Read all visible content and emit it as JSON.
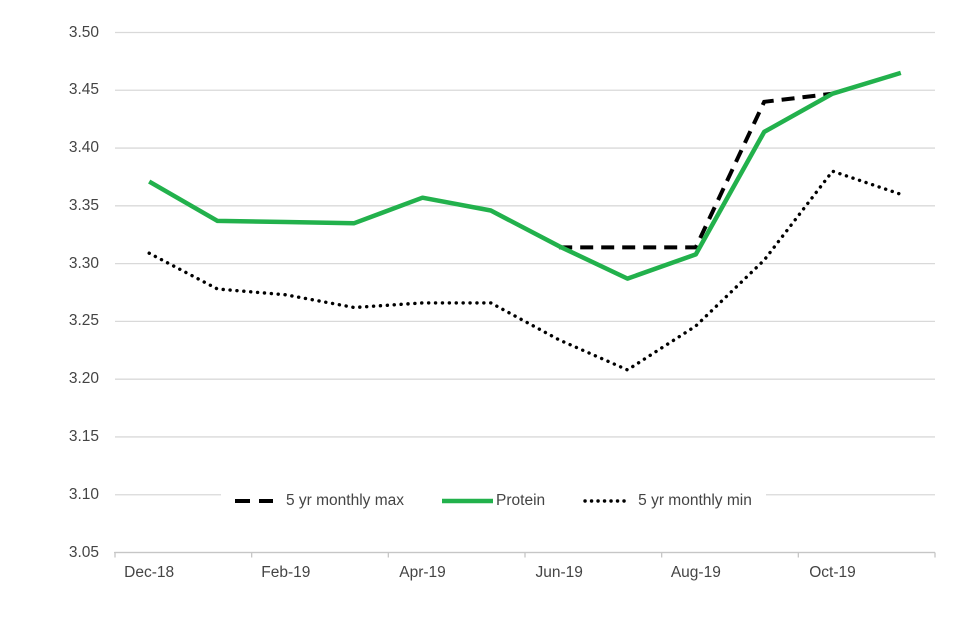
{
  "colors": {
    "protein_green": "#22B14C",
    "series_black": "#000000",
    "gridline": "#D9D9D9",
    "axis_line": "#C6C6C6",
    "text": "#444444",
    "background": "#FFFFFF"
  },
  "chart_data": {
    "type": "line",
    "title": "",
    "xlabel": "",
    "ylabel": "",
    "grid": true,
    "legend_position": "bottom-inside",
    "categories": [
      "Dec-18",
      "Jan-19",
      "Feb-19",
      "Mar-19",
      "Apr-19",
      "May-19",
      "Jun-19",
      "Jul-19",
      "Aug-19",
      "Sep-19",
      "Oct-19",
      "Nov-19"
    ],
    "x_axis_tick_labels": [
      "Dec-18",
      "Feb-19",
      "Apr-19",
      "Jun-19",
      "Aug-19",
      "Oct-19"
    ],
    "y_axis": {
      "min": 3.05,
      "max": 3.5,
      "step": 0.05,
      "tick_labels": [
        "3.05",
        "3.10",
        "3.15",
        "3.20",
        "3.25",
        "3.30",
        "3.35",
        "3.40",
        "3.45",
        "3.50"
      ]
    },
    "series": [
      {
        "name": "5 yr monthly max",
        "line_style": "dashed",
        "color": "#000000",
        "values": [
          null,
          null,
          null,
          null,
          null,
          null,
          3.314,
          3.314,
          3.314,
          3.44,
          3.447,
          null
        ]
      },
      {
        "name": "Protein",
        "line_style": "solid",
        "color": "#22B14C",
        "values": [
          3.371,
          3.337,
          3.336,
          3.335,
          3.357,
          3.346,
          3.315,
          3.287,
          3.308,
          3.414,
          3.447,
          3.465
        ]
      },
      {
        "name": "5 yr monthly min",
        "line_style": "dotted",
        "color": "#000000",
        "values": [
          3.309,
          3.278,
          3.273,
          3.262,
          3.266,
          3.266,
          3.234,
          3.208,
          3.246,
          3.303,
          3.38,
          3.36
        ]
      }
    ]
  }
}
